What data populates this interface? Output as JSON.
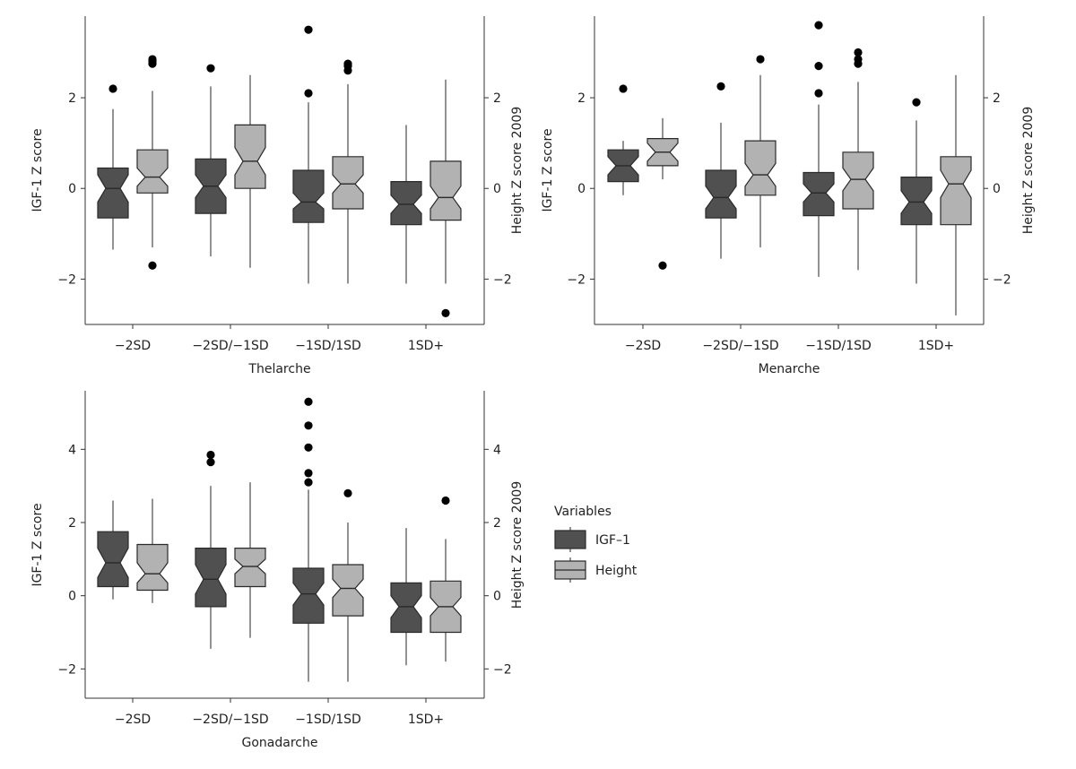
{
  "colors": {
    "igf1": "#505050",
    "height": "#b2b2b2",
    "outline": "#2a2a2a",
    "whisker": "#6e6e6e",
    "outlier": "#000000"
  },
  "legend": {
    "title": "Variables",
    "items": [
      "IGF–1",
      "Height"
    ]
  },
  "chart_data": [
    {
      "type": "boxplot",
      "notched": true,
      "title": "",
      "xlabel": "Thelarche",
      "ylabel_left": "IGF-1 Z score",
      "ylabel_right": "Height Z score 2009",
      "categories": [
        "−2SD",
        "−2SD/−1SD",
        "−1SD/1SD",
        "1SD+"
      ],
      "ylim": [
        -3,
        3.8
      ],
      "yticks": [
        -2,
        0,
        2
      ],
      "ytick_labels": [
        "−2",
        "0",
        "2"
      ],
      "series": [
        {
          "name": "IGF–1",
          "boxes": [
            {
              "whislo": -1.35,
              "q1": -0.65,
              "med": 0.0,
              "q3": 0.45,
              "whishi": 1.75,
              "notch": [
                -0.3,
                0.3
              ],
              "fliers": [
                2.2
              ]
            },
            {
              "whislo": -1.5,
              "q1": -0.55,
              "med": 0.05,
              "q3": 0.65,
              "whishi": 2.25,
              "notch": [
                -0.2,
                0.3
              ],
              "fliers": [
                2.65
              ]
            },
            {
              "whislo": -2.1,
              "q1": -0.75,
              "med": -0.3,
              "q3": 0.4,
              "whishi": 1.9,
              "notch": [
                -0.45,
                -0.1
              ],
              "fliers": [
                2.1,
                3.5
              ]
            },
            {
              "whislo": -2.1,
              "q1": -0.8,
              "med": -0.35,
              "q3": 0.15,
              "whishi": 1.4,
              "notch": [
                -0.55,
                -0.15
              ],
              "fliers": []
            }
          ]
        },
        {
          "name": "Height",
          "boxes": [
            {
              "whislo": -1.3,
              "q1": -0.1,
              "med": 0.25,
              "q3": 0.85,
              "whishi": 2.15,
              "notch": [
                0.05,
                0.45
              ],
              "fliers": [
                2.75,
                2.8,
                2.85,
                -1.7
              ]
            },
            {
              "whislo": -1.75,
              "q1": 0.0,
              "med": 0.6,
              "q3": 1.4,
              "whishi": 2.5,
              "notch": [
                0.3,
                0.9
              ],
              "fliers": []
            },
            {
              "whislo": -2.1,
              "q1": -0.45,
              "med": 0.1,
              "q3": 0.7,
              "whishi": 2.3,
              "notch": [
                -0.1,
                0.3
              ],
              "fliers": [
                2.6,
                2.7,
                2.75
              ]
            },
            {
              "whislo": -2.1,
              "q1": -0.7,
              "med": -0.2,
              "q3": 0.6,
              "whishi": 2.4,
              "notch": [
                -0.45,
                0.05
              ],
              "fliers": [
                -2.75
              ]
            }
          ]
        }
      ]
    },
    {
      "type": "boxplot",
      "notched": true,
      "title": "",
      "xlabel": "Menarche",
      "ylabel_left": "IGF-1 Z score",
      "ylabel_right": "Height Z score 2009",
      "categories": [
        "−2SD",
        "−2SD/−1SD",
        "−1SD/1SD",
        "1SD+"
      ],
      "ylim": [
        -3,
        3.8
      ],
      "yticks": [
        -2,
        0,
        2
      ],
      "ytick_labels": [
        "−2",
        "0",
        "2"
      ],
      "series": [
        {
          "name": "IGF–1",
          "boxes": [
            {
              "whislo": -0.15,
              "q1": 0.15,
              "med": 0.5,
              "q3": 0.85,
              "whishi": 1.05,
              "notch": [
                0.3,
                0.7
              ],
              "fliers": [
                2.2
              ]
            },
            {
              "whislo": -1.55,
              "q1": -0.65,
              "med": -0.2,
              "q3": 0.4,
              "whishi": 1.45,
              "notch": [
                -0.45,
                0.05
              ],
              "fliers": [
                2.25
              ]
            },
            {
              "whislo": -1.95,
              "q1": -0.6,
              "med": -0.1,
              "q3": 0.35,
              "whishi": 1.85,
              "notch": [
                -0.3,
                0.1
              ],
              "fliers": [
                2.1,
                2.7,
                3.6
              ]
            },
            {
              "whislo": -2.1,
              "q1": -0.8,
              "med": -0.3,
              "q3": 0.25,
              "whishi": 1.5,
              "notch": [
                -0.55,
                -0.05
              ],
              "fliers": [
                1.9
              ]
            }
          ]
        },
        {
          "name": "Height",
          "boxes": [
            {
              "whislo": 0.2,
              "q1": 0.5,
              "med": 0.8,
              "q3": 1.1,
              "whishi": 1.55,
              "notch": [
                0.6,
                1.0
              ],
              "fliers": [
                -1.7
              ]
            },
            {
              "whislo": -1.3,
              "q1": -0.15,
              "med": 0.3,
              "q3": 1.05,
              "whishi": 2.5,
              "notch": [
                0.05,
                0.55
              ],
              "fliers": [
                2.85
              ]
            },
            {
              "whislo": -1.8,
              "q1": -0.45,
              "med": 0.2,
              "q3": 0.8,
              "whishi": 2.35,
              "notch": [
                -0.05,
                0.45
              ],
              "fliers": [
                2.75,
                2.85,
                3.0
              ]
            },
            {
              "whislo": -2.8,
              "q1": -0.8,
              "med": 0.1,
              "q3": 0.7,
              "whishi": 2.5,
              "notch": [
                -0.2,
                0.4
              ],
              "fliers": []
            }
          ]
        }
      ]
    },
    {
      "type": "boxplot",
      "notched": true,
      "title": "",
      "xlabel": "Gonadarche",
      "ylabel_left": "IGF-1 Z score",
      "ylabel_right": "Height Z score 2009",
      "categories": [
        "−2SD",
        "−2SD/−1SD",
        "−1SD/1SD",
        "1SD+"
      ],
      "ylim": [
        -2.8,
        5.6
      ],
      "yticks": [
        -2,
        0,
        2,
        4
      ],
      "ytick_labels": [
        "−2",
        "0",
        "2",
        "4"
      ],
      "series": [
        {
          "name": "IGF–1",
          "boxes": [
            {
              "whislo": -0.1,
              "q1": 0.25,
              "med": 0.9,
              "q3": 1.75,
              "whishi": 2.6,
              "notch": [
                0.5,
                1.3
              ],
              "fliers": []
            },
            {
              "whislo": -1.45,
              "q1": -0.3,
              "med": 0.45,
              "q3": 1.3,
              "whishi": 3.0,
              "notch": [
                0.05,
                0.85
              ],
              "fliers": [
                3.65,
                3.85
              ]
            },
            {
              "whislo": -2.35,
              "q1": -0.75,
              "med": 0.05,
              "q3": 0.75,
              "whishi": 2.9,
              "notch": [
                -0.25,
                0.35
              ],
              "fliers": [
                3.1,
                3.35,
                4.05,
                4.65,
                5.3
              ]
            },
            {
              "whislo": -1.9,
              "q1": -1.0,
              "med": -0.3,
              "q3": 0.35,
              "whishi": 1.85,
              "notch": [
                -0.6,
                0.0
              ],
              "fliers": []
            }
          ]
        },
        {
          "name": "Height",
          "boxes": [
            {
              "whislo": -0.2,
              "q1": 0.15,
              "med": 0.6,
              "q3": 1.4,
              "whishi": 2.65,
              "notch": [
                0.35,
                0.9
              ],
              "fliers": []
            },
            {
              "whislo": -1.15,
              "q1": 0.25,
              "med": 0.8,
              "q3": 1.3,
              "whishi": 3.1,
              "notch": [
                0.6,
                1.0
              ],
              "fliers": []
            },
            {
              "whislo": -2.35,
              "q1": -0.55,
              "med": 0.2,
              "q3": 0.85,
              "whishi": 2.0,
              "notch": [
                -0.05,
                0.45
              ],
              "fliers": [
                2.8
              ]
            },
            {
              "whislo": -1.8,
              "q1": -1.0,
              "med": -0.3,
              "q3": 0.4,
              "whishi": 1.55,
              "notch": [
                -0.55,
                -0.05
              ],
              "fliers": [
                2.6
              ]
            }
          ]
        }
      ]
    }
  ]
}
